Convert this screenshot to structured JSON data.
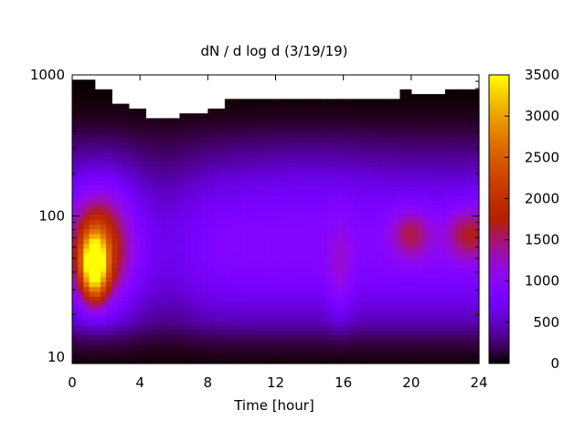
{
  "chart_data": {
    "type": "heatmap",
    "title": "dN / d log d (3/19/19)",
    "xlabel": "Time [hour]",
    "ylabel": "",
    "x_range": [
      0,
      24
    ],
    "y_range": [
      9,
      1000
    ],
    "y_scale": "log",
    "x_ticks": [
      0,
      4,
      8,
      12,
      16,
      20,
      24
    ],
    "y_ticks": [
      10,
      100,
      1000
    ],
    "colorbar": {
      "range": [
        0,
        3500
      ],
      "ticks": [
        0,
        500,
        1000,
        1500,
        2000,
        2500,
        3000,
        3500
      ],
      "palette": "black-purple-orange-yellow (gnuplot)",
      "position": "right"
    },
    "grid": false,
    "description_values": {
      "max_value_near": {
        "time_hour": 1.3,
        "diameter": 40,
        "value": 3500
      },
      "secondary_maxima": [
        {
          "time_hour": 20,
          "diameter": 75,
          "value": 1700
        },
        {
          "time_hour": 23.5,
          "diameter": 75,
          "value": 1750
        }
      ],
      "upper_size_cutoff": [
        {
          "time_hour": 0,
          "diameter": 920
        },
        {
          "time_hour": 1.5,
          "diameter": 820
        },
        {
          "time_hour": 2.5,
          "diameter": 640
        },
        {
          "time_hour": 3.5,
          "diameter": 600
        },
        {
          "time_hour": 4.5,
          "diameter": 500
        },
        {
          "time_hour": 6.5,
          "diameter": 540
        },
        {
          "time_hour": 8,
          "diameter": 600
        },
        {
          "time_hour": 9,
          "diameter": 650
        },
        {
          "time_hour": 15.5,
          "diameter": 700
        },
        {
          "time_hour": 19.5,
          "diameter": 800
        },
        {
          "time_hour": 20,
          "diameter": 720
        },
        {
          "time_hour": 22,
          "diameter": 800
        }
      ]
    }
  }
}
